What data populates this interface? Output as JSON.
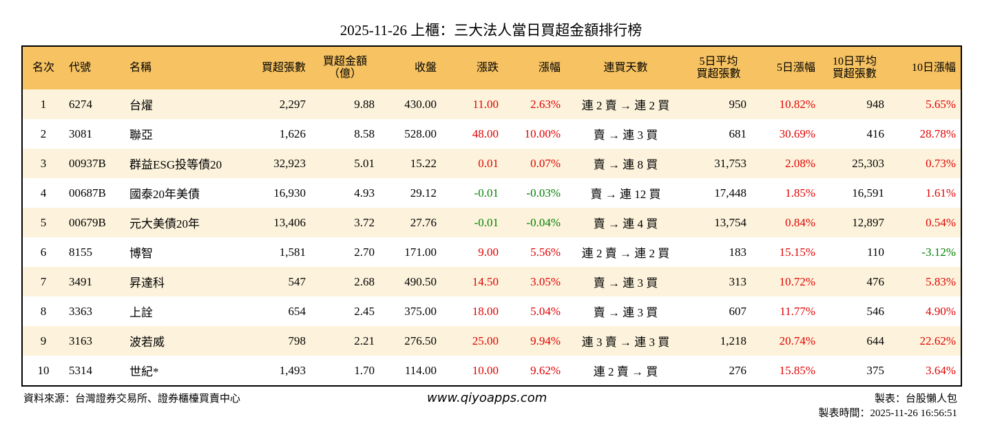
{
  "title": "2025-11-26 上櫃：三大法人當日買超金額排行榜",
  "table": {
    "headers": [
      [
        "名次"
      ],
      [
        "代號"
      ],
      [
        "名稱"
      ],
      [
        "買超張數"
      ],
      [
        "買超金額",
        "（億）"
      ],
      [
        "收盤"
      ],
      [
        "漲跌"
      ],
      [
        "漲幅"
      ],
      [
        "連買天數"
      ],
      [
        "5日平均",
        "買超張數"
      ],
      [
        "5日漲幅"
      ],
      [
        "10日平均",
        "買超張數"
      ],
      [
        "10日漲幅"
      ]
    ],
    "rows": [
      [
        "1",
        "6274",
        "台燿",
        "2,297",
        "9.88",
        "430.00",
        "11.00",
        "2.63%",
        "連 2 賣 → 連 2 買",
        "950",
        "10.82%",
        "948",
        "5.65%"
      ],
      [
        "2",
        "3081",
        "聯亞",
        "1,626",
        "8.58",
        "528.00",
        "48.00",
        "10.00%",
        "賣 → 連 3 買",
        "681",
        "30.69%",
        "416",
        "28.78%"
      ],
      [
        "3",
        "00937B",
        "群益ESG投等債20",
        "32,923",
        "5.01",
        "15.22",
        "0.01",
        "0.07%",
        "賣 → 連 8 買",
        "31,753",
        "2.08%",
        "25,303",
        "0.73%"
      ],
      [
        "4",
        "00687B",
        "國泰20年美債",
        "16,930",
        "4.93",
        "29.12",
        "-0.01",
        "-0.03%",
        "賣 → 連 12 買",
        "17,448",
        "1.85%",
        "16,591",
        "1.61%"
      ],
      [
        "5",
        "00679B",
        "元大美債20年",
        "13,406",
        "3.72",
        "27.76",
        "-0.01",
        "-0.04%",
        "賣 → 連 4 買",
        "13,754",
        "0.84%",
        "12,897",
        "0.54%"
      ],
      [
        "6",
        "8155",
        "博智",
        "1,581",
        "2.70",
        "171.00",
        "9.00",
        "5.56%",
        "連 2 賣 → 連 2 買",
        "183",
        "15.15%",
        "110",
        "-3.12%"
      ],
      [
        "7",
        "3491",
        "昇達科",
        "547",
        "2.68",
        "490.50",
        "14.50",
        "3.05%",
        "賣 → 連 3 買",
        "313",
        "10.72%",
        "476",
        "5.83%"
      ],
      [
        "8",
        "3363",
        "上詮",
        "654",
        "2.45",
        "375.00",
        "18.00",
        "5.04%",
        "賣 → 連 3 買",
        "607",
        "11.77%",
        "546",
        "4.90%"
      ],
      [
        "9",
        "3163",
        "波若威",
        "798",
        "2.21",
        "276.50",
        "25.00",
        "9.94%",
        "連 3 賣 → 連 3 買",
        "1,218",
        "20.74%",
        "644",
        "22.62%"
      ],
      [
        "10",
        "5314",
        "世紀*",
        "1,493",
        "1.70",
        "114.00",
        "10.00",
        "9.62%",
        "連 2 賣 → 買",
        "276",
        "15.85%",
        "375",
        "3.64%"
      ]
    ]
  },
  "footer": {
    "source": "資料來源：台灣證券交易所、證券櫃檯買賣中心",
    "website": "www.qiyoapps.com",
    "maker": "製表：台股懶人包",
    "time": "製表時間：2025-11-26 16:56:51"
  }
}
